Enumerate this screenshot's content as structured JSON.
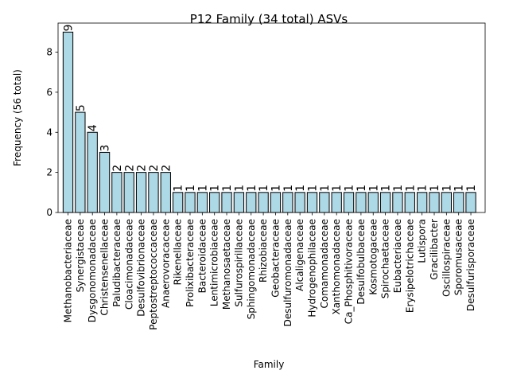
{
  "chart_data": {
    "type": "bar",
    "title": "P12 Family (34 total) ASVs",
    "xlabel": "Family",
    "ylabel": "Frequency (56 total)",
    "ylim": [
      0,
      9.45
    ],
    "yticks": [
      0,
      2,
      4,
      6,
      8
    ],
    "grid": false,
    "legend": "none",
    "bar_color": "#add8e6",
    "edge_color": "#000000",
    "categories": [
      "Methanobacteriaceae",
      "Synergistaceae",
      "Dysgonomonadaceae",
      "Christensenellaceae",
      "Paludibacteraceae",
      "Cloacimonadaceae",
      "Desulfovibrionaceae",
      "Peptostreptococcaceae",
      "Anaerovoracaceae",
      "Rikenellaceae",
      "Prolixibacteraceae",
      "Bacteroidaceae",
      "Lentimicrobiaceae",
      "Methanosaetaceae",
      "Sulfurospirillaceae",
      "Sphingomonadaceae",
      "Rhizobiaceae",
      "Geobacteraceae",
      "Desulfuromonadaceae",
      "Alcaligenaceae",
      "Hydrogenophilaceae",
      "Comamonadaceae",
      "Xanthomonadaceae",
      "Ca_Phosphitivoraceae",
      "Desulfobulbaceae",
      "Kosmotogaceae",
      "Spirochaetaceae",
      "Eubacteriaceae",
      "Erysipelotrichaceae",
      "Lutispora",
      "Gracilibacter",
      "Oscillospiraceae",
      "Sporomusaceae",
      "Desulfurisporaceae"
    ],
    "values": [
      9,
      5,
      4,
      3,
      2,
      2,
      2,
      2,
      2,
      1,
      1,
      1,
      1,
      1,
      1,
      1,
      1,
      1,
      1,
      1,
      1,
      1,
      1,
      1,
      1,
      1,
      1,
      1,
      1,
      1,
      1,
      1,
      1,
      1
    ]
  }
}
